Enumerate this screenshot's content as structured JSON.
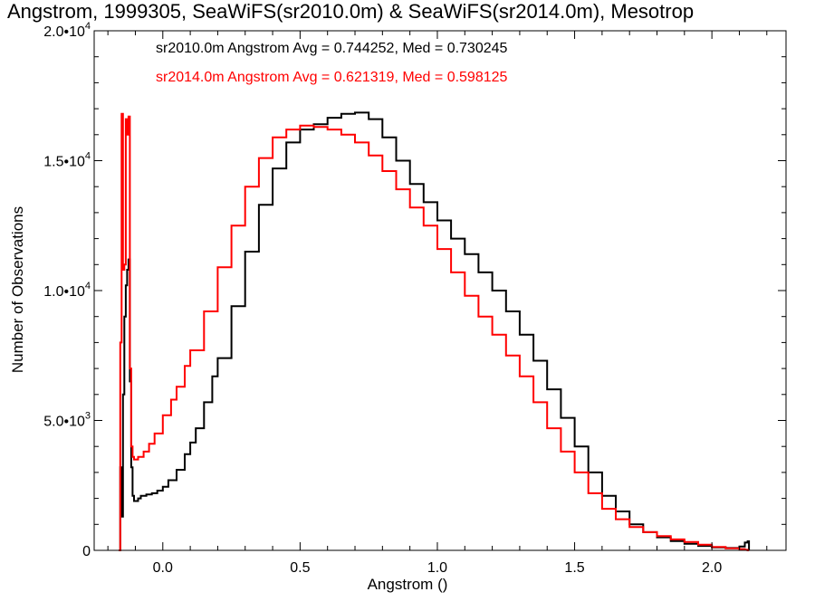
{
  "chart_data": {
    "type": "line",
    "title": "Angstrom, 1999305, SeaWiFS(sr2010.0m) & SeaWiFS(sr2014.0m), Mesotrop",
    "xlabel": "Angstrom ()",
    "ylabel": "Number of Observations",
    "xlim": [
      -0.25,
      2.27
    ],
    "ylim": [
      0,
      20000
    ],
    "xticks": [
      {
        "value": 0.0,
        "label": "0.0"
      },
      {
        "value": 0.5,
        "label": "0.5"
      },
      {
        "value": 1.0,
        "label": "1.0"
      },
      {
        "value": 1.5,
        "label": "1.5"
      },
      {
        "value": 2.0,
        "label": "2.0"
      }
    ],
    "yticks": [
      {
        "value": 0,
        "label": "0",
        "sup": ""
      },
      {
        "value": 5000,
        "label": "5.0•10",
        "sup": "3"
      },
      {
        "value": 10000,
        "label": "1.0•10",
        "sup": "4"
      },
      {
        "value": 15000,
        "label": "1.5•10",
        "sup": "4"
      },
      {
        "value": 20000,
        "label": "2.0•10",
        "sup": "4"
      }
    ],
    "grid": false,
    "annotations": [
      {
        "text": "sr2010.0m Angstrom Avg = 0.744252, Med = 0.730245",
        "color": "#000000"
      },
      {
        "text": "sr2014.0m Angstrom Avg = 0.621319, Med = 0.598125",
        "color": "#ff0000"
      }
    ],
    "series": [
      {
        "color": "#000000",
        "x": [
          -0.16,
          -0.155,
          -0.15,
          -0.145,
          -0.14,
          -0.135,
          -0.13,
          -0.125,
          -0.12,
          -0.115,
          -0.11,
          -0.105,
          -0.1,
          -0.09,
          -0.08,
          -0.06,
          -0.04,
          -0.02,
          0.0,
          0.02,
          0.05,
          0.08,
          0.1,
          0.12,
          0.15,
          0.18,
          0.2,
          0.25,
          0.3,
          0.35,
          0.4,
          0.45,
          0.5,
          0.55,
          0.6,
          0.65,
          0.7,
          0.75,
          0.8,
          0.85,
          0.9,
          0.95,
          1.0,
          1.05,
          1.1,
          1.15,
          1.2,
          1.25,
          1.3,
          1.35,
          1.4,
          1.45,
          1.5,
          1.55,
          1.6,
          1.65,
          1.7,
          1.75,
          1.8,
          1.85,
          1.9,
          1.95,
          2.0,
          2.05,
          2.1,
          2.12,
          2.13,
          2.135
        ],
        "y": [
          0,
          3200,
          1300,
          6000,
          9000,
          10200,
          10800,
          11200,
          6500,
          3200,
          2100,
          1900,
          1900,
          2000,
          2100,
          2150,
          2200,
          2300,
          2450,
          2700,
          3100,
          3700,
          4150,
          4700,
          5700,
          6700,
          7400,
          9400,
          11500,
          13300,
          14700,
          15700,
          16200,
          16400,
          16650,
          16800,
          16850,
          16600,
          15900,
          15000,
          14100,
          13400,
          12700,
          12000,
          11400,
          10700,
          10000,
          9200,
          8300,
          7300,
          6200,
          5100,
          4000,
          3000,
          2100,
          1500,
          1000,
          700,
          500,
          360,
          250,
          170,
          110,
          90,
          150,
          300,
          350,
          0
        ]
      },
      {
        "color": "#ff0000",
        "x": [
          -0.16,
          -0.155,
          -0.15,
          -0.145,
          -0.14,
          -0.135,
          -0.13,
          -0.125,
          -0.12,
          -0.115,
          -0.11,
          -0.105,
          -0.1,
          -0.09,
          -0.07,
          -0.05,
          -0.03,
          0.0,
          0.03,
          0.05,
          0.08,
          0.1,
          0.15,
          0.2,
          0.25,
          0.3,
          0.35,
          0.4,
          0.45,
          0.5,
          0.55,
          0.6,
          0.65,
          0.7,
          0.75,
          0.8,
          0.85,
          0.9,
          0.95,
          1.0,
          1.05,
          1.1,
          1.15,
          1.2,
          1.25,
          1.3,
          1.35,
          1.4,
          1.45,
          1.5,
          1.55,
          1.6,
          1.65,
          1.7,
          1.75,
          1.8,
          1.85,
          1.9,
          1.95,
          2.0,
          2.05,
          2.1,
          2.12,
          2.13,
          2.135
        ],
        "y": [
          0,
          8000,
          16800,
          10800,
          11000,
          16600,
          16000,
          16700,
          7000,
          4000,
          3600,
          3500,
          3500,
          3600,
          3800,
          4100,
          4500,
          5200,
          5800,
          6300,
          7100,
          7700,
          9200,
          10900,
          12500,
          14000,
          15100,
          15900,
          16200,
          16350,
          16300,
          16200,
          16000,
          15700,
          15200,
          14600,
          13900,
          13200,
          12500,
          11600,
          10700,
          9800,
          9000,
          8300,
          7500,
          6700,
          5700,
          4700,
          3800,
          3000,
          2200,
          1600,
          1200,
          900,
          700,
          550,
          420,
          320,
          220,
          130,
          80,
          50,
          20,
          0,
          0
        ]
      }
    ]
  }
}
